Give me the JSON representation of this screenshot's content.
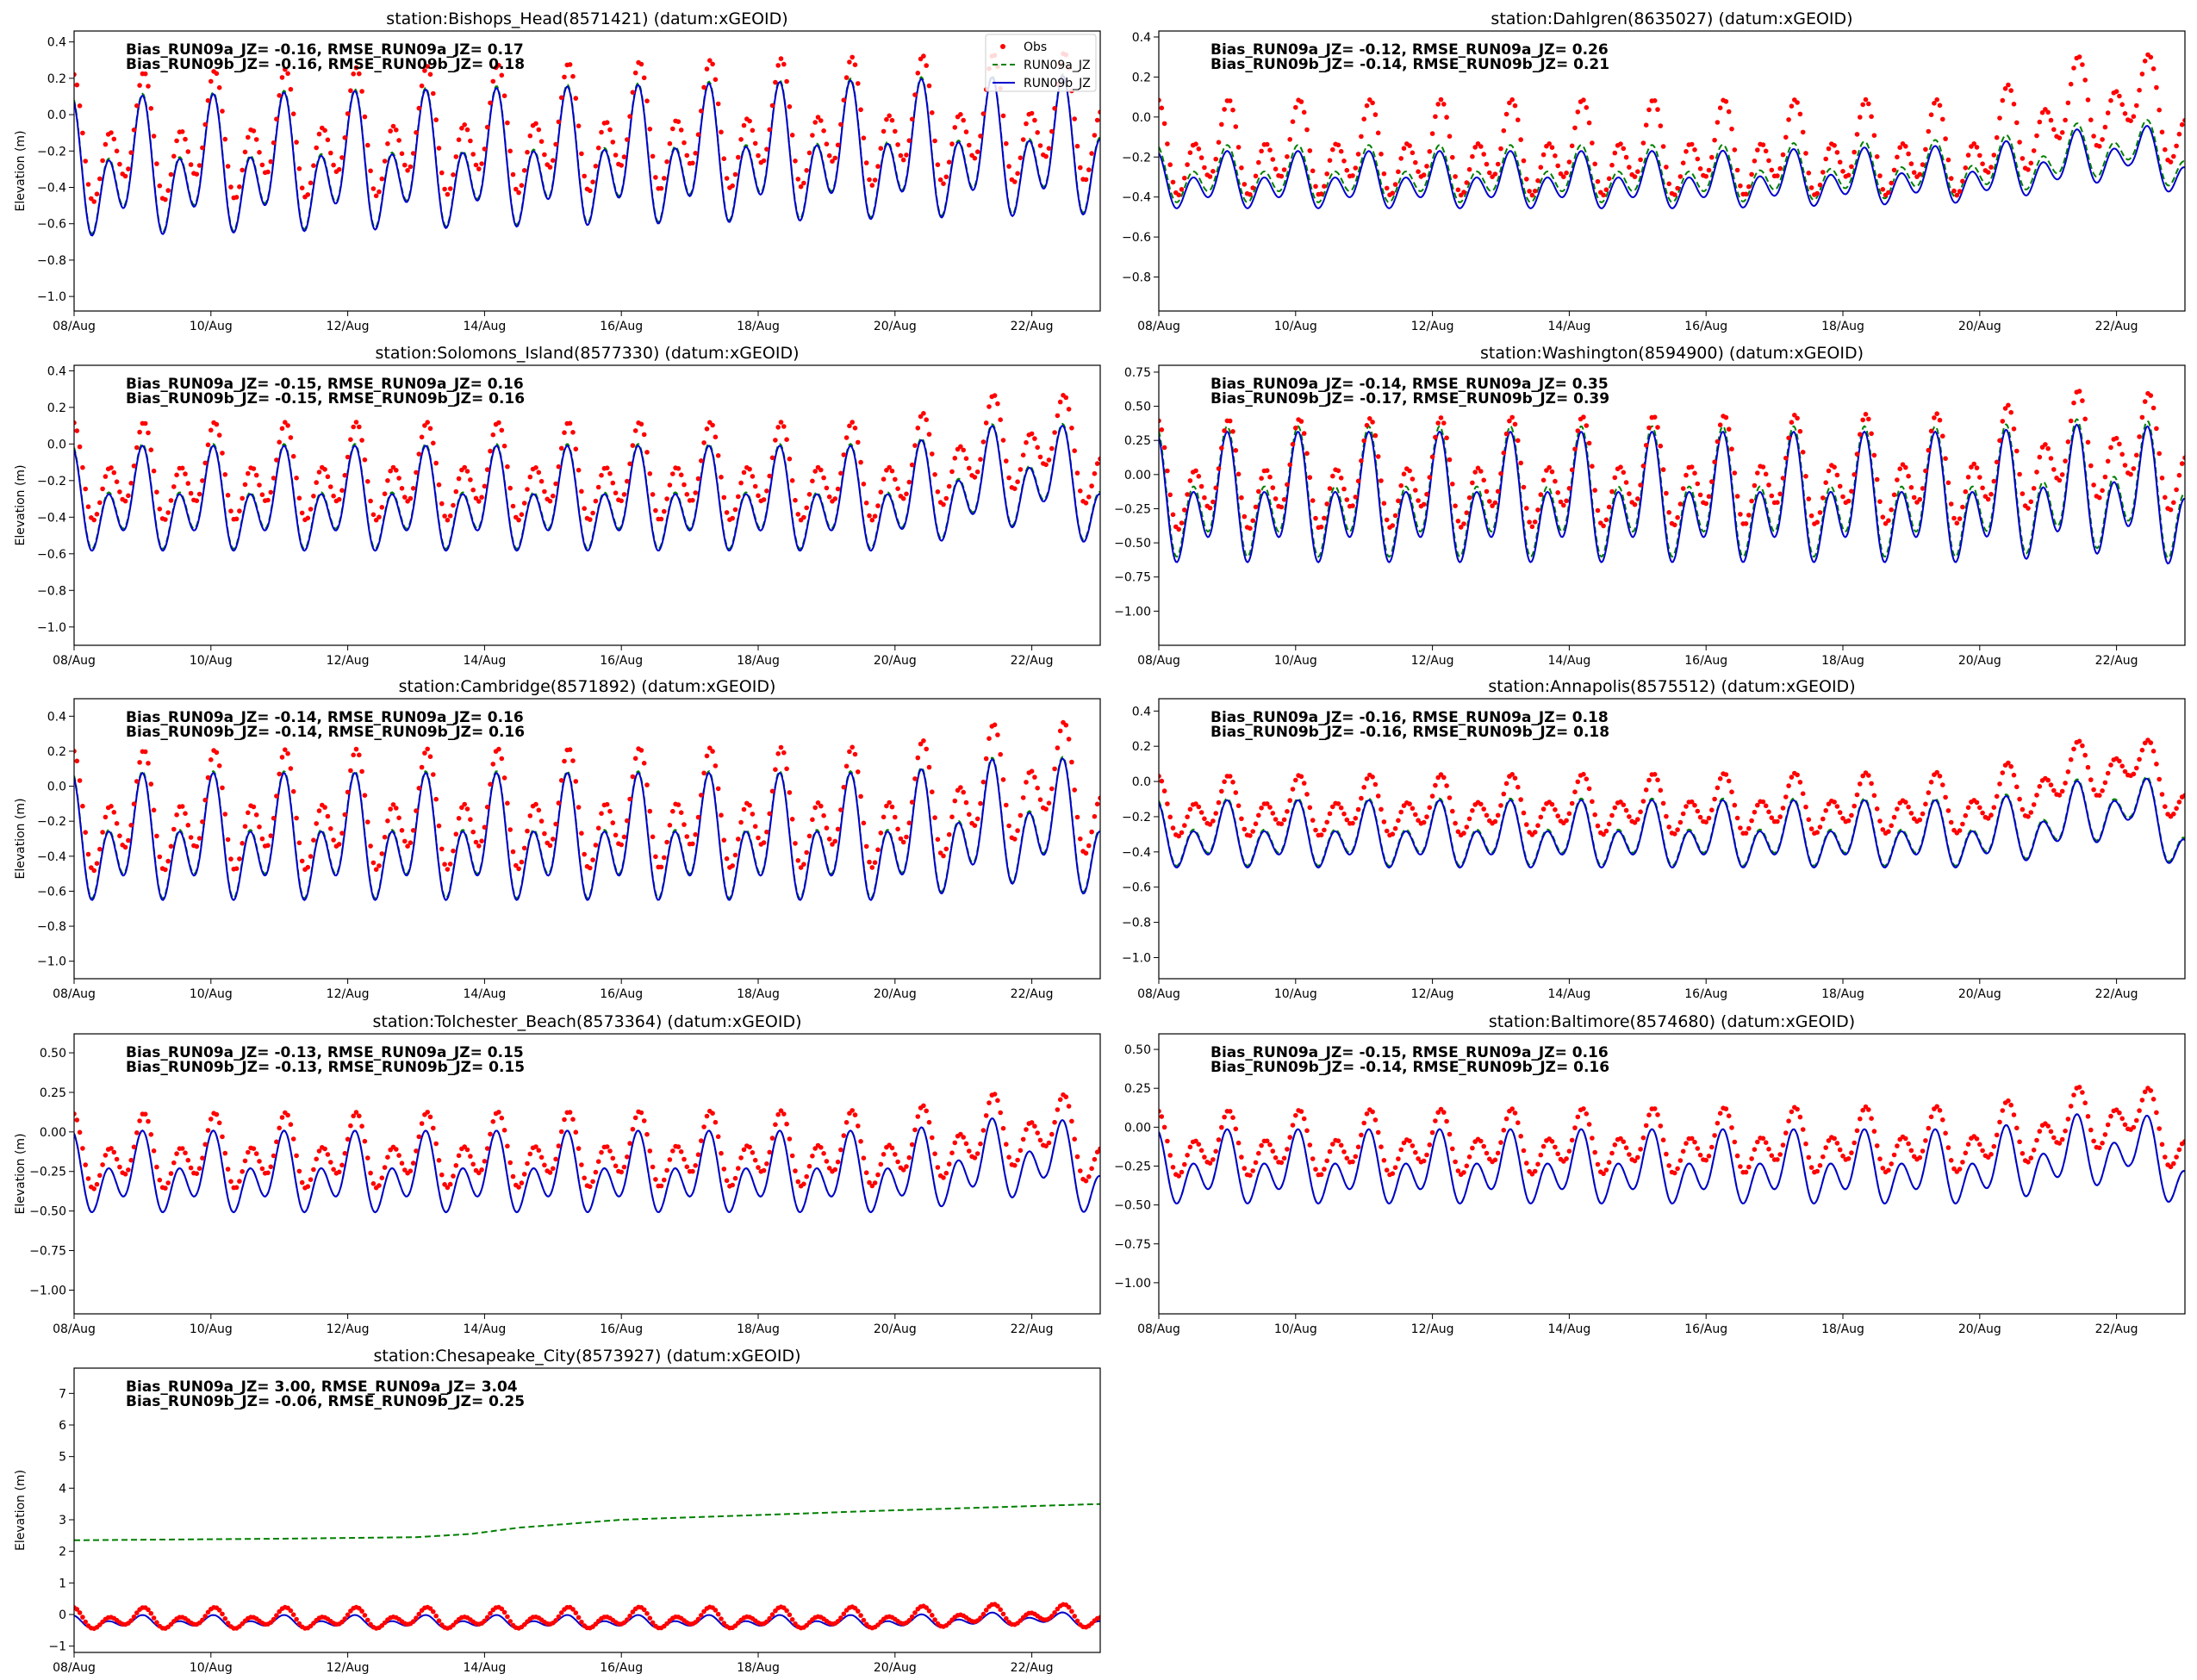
{
  "figure": {
    "series_names": [
      "Obs",
      "RUN09a_JZ",
      "RUN09b_JZ"
    ],
    "colors": {
      "obs": "#ff0000",
      "run09a": "#008000",
      "run09b": "#0000cd"
    },
    "legend_location": "top-right of first panel"
  },
  "chart_data": [
    {
      "type": "line",
      "title": "station:Bishops_Head(8571421) (datum:xGEOID)",
      "ylabel": "Elevation (m)",
      "xlim": [
        0,
        15
      ],
      "ylim": [
        -1.08,
        0.46
      ],
      "yticks": [
        0.4,
        0.2,
        0.0,
        -0.2,
        -0.4,
        -0.6,
        -0.8,
        -1.0
      ],
      "ytick_labels": [
        "0.4",
        "0.2",
        "0.0",
        "−0.2",
        "−0.4",
        "−0.6",
        "−0.8",
        "−1.0"
      ],
      "xtick_labels": [
        "08/Aug",
        "10/Aug",
        "12/Aug",
        "14/Aug",
        "16/Aug",
        "18/Aug",
        "20/Aug",
        "22/Aug"
      ],
      "stats": [
        "Bias_RUN09a_JZ= -0.16, RMSE_RUN09a_JZ=  0.17",
        "Bias_RUN09b_JZ= -0.16, RMSE_RUN09b_JZ=  0.18"
      ],
      "model_params": {
        "mean": -0.33,
        "amp": 0.4,
        "trend": [
          [
            0,
            0
          ],
          [
            15,
            0.12
          ]
        ]
      },
      "obs_params": {
        "mean": -0.17,
        "amp": 0.37,
        "trend": [
          [
            0,
            0
          ],
          [
            15,
            0.12
          ]
        ]
      },
      "run09a_params": {
        "offset": 0.01
      }
    },
    {
      "type": "line",
      "title": "station:Dahlgren(8635027) (datum:xGEOID)",
      "ylabel": "",
      "xlim": [
        0,
        15
      ],
      "ylim": [
        -0.97,
        0.43
      ],
      "yticks": [
        0.4,
        0.2,
        0.0,
        -0.2,
        -0.4,
        -0.6,
        -0.8
      ],
      "ytick_labels": [
        "0.4",
        "0.2",
        "0.0",
        "−0.2",
        "−0.4",
        "−0.6",
        "−0.8"
      ],
      "xtick_labels": [
        "08/Aug",
        "10/Aug",
        "12/Aug",
        "14/Aug",
        "16/Aug",
        "18/Aug",
        "20/Aug",
        "22/Aug"
      ],
      "stats": [
        "Bias_RUN09a_JZ= -0.12, RMSE_RUN09a_JZ=  0.26",
        "Bias_RUN09b_JZ= -0.14, RMSE_RUN09b_JZ=  0.21"
      ],
      "model_params": {
        "mean": -0.33,
        "amp": 0.15,
        "trend": [
          [
            0,
            0
          ],
          [
            8,
            0.0
          ],
          [
            12,
            0.03
          ],
          [
            13,
            0.08
          ],
          [
            14.2,
            0.16
          ],
          [
            15,
            0.05
          ]
        ]
      },
      "obs_params": {
        "mean": -0.18,
        "amp": 0.25,
        "trend": [
          [
            0,
            0
          ],
          [
            12,
            0.0
          ],
          [
            13,
            0.18
          ],
          [
            14.2,
            0.28
          ],
          [
            15,
            0.12
          ]
        ]
      },
      "run09a_params": {
        "offset": 0.03
      }
    },
    {
      "type": "line",
      "title": "station:Solomons_Island(8577330) (datum:xGEOID)",
      "ylabel": "Elevation (m)",
      "xlim": [
        0,
        15
      ],
      "ylim": [
        -1.1,
        0.43
      ],
      "yticks": [
        0.4,
        0.2,
        0.0,
        -0.2,
        -0.4,
        -0.6,
        -0.8,
        -1.0
      ],
      "ytick_labels": [
        "0.4",
        "0.2",
        "0.0",
        "−0.2",
        "−0.4",
        "−0.6",
        "−0.8",
        "−1.0"
      ],
      "xtick_labels": [
        "08/Aug",
        "10/Aug",
        "12/Aug",
        "14/Aug",
        "16/Aug",
        "18/Aug",
        "20/Aug",
        "22/Aug"
      ],
      "stats": [
        "Bias_RUN09a_JZ= -0.15, RMSE_RUN09a_JZ=  0.16",
        "Bias_RUN09b_JZ= -0.15, RMSE_RUN09b_JZ=  0.16"
      ],
      "model_params": {
        "mean": -0.33,
        "amp": 0.3,
        "trend": [
          [
            0,
            0
          ],
          [
            12,
            0.0
          ],
          [
            13,
            0.08
          ],
          [
            14.2,
            0.16
          ],
          [
            15,
            0.0
          ]
        ]
      },
      "obs_params": {
        "mean": -0.18,
        "amp": 0.28,
        "trend": [
          [
            0,
            0
          ],
          [
            12,
            0.0
          ],
          [
            13,
            0.12
          ],
          [
            14.2,
            0.2
          ],
          [
            15,
            0.05
          ]
        ]
      },
      "run09a_params": {
        "offset": 0.01
      }
    },
    {
      "type": "line",
      "title": "station:Washington(8594900) (datum:xGEOID)",
      "ylabel": "",
      "xlim": [
        0,
        15
      ],
      "ylim": [
        -1.25,
        0.8
      ],
      "yticks": [
        0.75,
        0.5,
        0.25,
        0.0,
        -0.25,
        -0.5,
        -0.75,
        -1.0
      ],
      "ytick_labels": [
        "0.75",
        "0.50",
        "0.25",
        "0.00",
        "−0.25",
        "−0.50",
        "−0.75",
        "−1.00"
      ],
      "xtick_labels": [
        "08/Aug",
        "10/Aug",
        "12/Aug",
        "14/Aug",
        "16/Aug",
        "18/Aug",
        "20/Aug",
        "22/Aug"
      ],
      "stats": [
        "Bias_RUN09a_JZ= -0.14, RMSE_RUN09a_JZ=  0.35",
        "Bias_RUN09b_JZ= -0.17, RMSE_RUN09b_JZ=  0.39"
      ],
      "model_params": {
        "mean": -0.22,
        "amp": 0.5,
        "trend": [
          [
            0,
            0
          ],
          [
            12,
            0.0
          ],
          [
            14.2,
            0.08
          ],
          [
            15,
            -0.05
          ]
        ]
      },
      "obs_params": {
        "mean": -0.05,
        "amp": 0.42,
        "trend": [
          [
            0,
            0
          ],
          [
            12,
            0.05
          ],
          [
            13,
            0.2
          ],
          [
            14.2,
            0.25
          ],
          [
            15,
            0.1
          ]
        ]
      },
      "run09a_params": {
        "offset": 0.04
      }
    },
    {
      "type": "line",
      "title": "station:Cambridge(8571892) (datum:xGEOID)",
      "ylabel": "Elevation (m)",
      "xlim": [
        0,
        15
      ],
      "ylim": [
        -1.1,
        0.5
      ],
      "yticks": [
        0.4,
        0.2,
        0.0,
        -0.2,
        -0.4,
        -0.6,
        -0.8,
        -1.0
      ],
      "ytick_labels": [
        "0.4",
        "0.2",
        "0.0",
        "−0.2",
        "−0.4",
        "−0.6",
        "−0.8",
        "−1.0"
      ],
      "xtick_labels": [
        "08/Aug",
        "10/Aug",
        "12/Aug",
        "14/Aug",
        "16/Aug",
        "18/Aug",
        "20/Aug",
        "22/Aug"
      ],
      "stats": [
        "Bias_RUN09a_JZ= -0.14, RMSE_RUN09a_JZ=  0.16",
        "Bias_RUN09b_JZ= -0.14, RMSE_RUN09b_JZ=  0.16"
      ],
      "model_params": {
        "mean": -0.33,
        "amp": 0.38,
        "trend": [
          [
            0,
            0
          ],
          [
            12,
            0.0
          ],
          [
            14.2,
            0.12
          ],
          [
            15,
            0.0
          ]
        ]
      },
      "obs_params": {
        "mean": -0.18,
        "amp": 0.36,
        "trend": [
          [
            0,
            0
          ],
          [
            12,
            0.02
          ],
          [
            14.2,
            0.22
          ],
          [
            15,
            0.05
          ]
        ]
      },
      "run09a_params": {
        "offset": 0.01
      }
    },
    {
      "type": "line",
      "title": "station:Annapolis(8575512) (datum:xGEOID)",
      "ylabel": "",
      "xlim": [
        0,
        15
      ],
      "ylim": [
        -1.12,
        0.47
      ],
      "yticks": [
        0.4,
        0.2,
        0.0,
        -0.2,
        -0.4,
        -0.6,
        -0.8,
        -1.0
      ],
      "ytick_labels": [
        "0.4",
        "0.2",
        "0.0",
        "−0.2",
        "−0.4",
        "−0.6",
        "−0.8",
        "−1.0"
      ],
      "xtick_labels": [
        "08/Aug",
        "10/Aug",
        "12/Aug",
        "14/Aug",
        "16/Aug",
        "18/Aug",
        "20/Aug",
        "22/Aug"
      ],
      "stats": [
        "Bias_RUN09a_JZ= -0.16, RMSE_RUN09a_JZ=  0.18",
        "Bias_RUN09b_JZ= -0.16, RMSE_RUN09b_JZ=  0.18"
      ],
      "model_params": {
        "mean": -0.32,
        "amp": 0.2,
        "trend": [
          [
            0,
            0
          ],
          [
            12,
            0.0
          ],
          [
            13,
            0.06
          ],
          [
            14.2,
            0.2
          ],
          [
            15,
            -0.05
          ]
        ]
      },
      "obs_params": {
        "mean": -0.16,
        "amp": 0.18,
        "trend": [
          [
            0,
            0
          ],
          [
            12,
            0.02
          ],
          [
            13,
            0.15
          ],
          [
            14.2,
            0.28
          ],
          [
            15,
            0.05
          ]
        ]
      },
      "run09a_params": {
        "offset": 0.01
      }
    },
    {
      "type": "line",
      "title": "station:Tolchester_Beach(8573364) (datum:xGEOID)",
      "ylabel": "Elevation (m)",
      "xlim": [
        0,
        15
      ],
      "ylim": [
        -1.15,
        0.62
      ],
      "yticks": [
        0.5,
        0.25,
        0.0,
        -0.25,
        -0.5,
        -0.75,
        -1.0
      ],
      "ytick_labels": [
        "0.50",
        "0.25",
        "0.00",
        "−0.25",
        "−0.50",
        "−0.75",
        "−1.00"
      ],
      "xtick_labels": [
        "08/Aug",
        "10/Aug",
        "12/Aug",
        "14/Aug",
        "16/Aug",
        "18/Aug",
        "20/Aug",
        "22/Aug"
      ],
      "stats": [
        "Bias_RUN09a_JZ= -0.13, RMSE_RUN09a_JZ=  0.15",
        "Bias_RUN09b_JZ= -0.13, RMSE_RUN09b_JZ=  0.15"
      ],
      "model_params": {
        "mean": -0.28,
        "amp": 0.27,
        "trend": [
          [
            0,
            0
          ],
          [
            12,
            0.0
          ],
          [
            14.2,
            0.12
          ],
          [
            15,
            -0.05
          ]
        ]
      },
      "obs_params": {
        "mean": -0.15,
        "amp": 0.25,
        "trend": [
          [
            0,
            0
          ],
          [
            12,
            0.02
          ],
          [
            14.2,
            0.18
          ],
          [
            15,
            0.0
          ]
        ]
      },
      "run09a_params": {
        "offset": 0.0
      }
    },
    {
      "type": "line",
      "title": "station:Baltimore(8574680) (datum:xGEOID)",
      "ylabel": "",
      "xlim": [
        0,
        15
      ],
      "ylim": [
        -1.2,
        0.6
      ],
      "yticks": [
        0.5,
        0.25,
        0.0,
        -0.25,
        -0.5,
        -0.75,
        -1.0
      ],
      "ytick_labels": [
        "0.50",
        "0.25",
        "0.00",
        "−0.25",
        "−0.50",
        "−0.75",
        "−1.00"
      ],
      "xtick_labels": [
        "08/Aug",
        "10/Aug",
        "12/Aug",
        "14/Aug",
        "16/Aug",
        "18/Aug",
        "20/Aug",
        "22/Aug"
      ],
      "stats": [
        "Bias_RUN09a_JZ= -0.15, RMSE_RUN09a_JZ=  0.16",
        "Bias_RUN09b_JZ= -0.14, RMSE_RUN09b_JZ=  0.16"
      ],
      "model_params": {
        "mean": -0.28,
        "amp": 0.25,
        "trend": [
          [
            0,
            0
          ],
          [
            12,
            0.0
          ],
          [
            14.2,
            0.15
          ],
          [
            15,
            -0.05
          ]
        ]
      },
      "obs_params": {
        "mean": -0.13,
        "amp": 0.22,
        "trend": [
          [
            0,
            0
          ],
          [
            12,
            0.03
          ],
          [
            14.2,
            0.22
          ],
          [
            15,
            0.0
          ]
        ]
      },
      "run09a_params": {
        "offset": 0.0
      }
    },
    {
      "type": "line",
      "title": "station:Chesapeake_City(8573927) (datum:xGEOID)",
      "ylabel": "Elevation (m)",
      "xlim": [
        0,
        15
      ],
      "ylim": [
        -1.2,
        7.8
      ],
      "yticks": [
        7,
        6,
        5,
        4,
        3,
        2,
        1,
        0,
        -1
      ],
      "ytick_labels": [
        "7",
        "6",
        "5",
        "4",
        "3",
        "2",
        "1",
        "0",
        "−1"
      ],
      "xtick_labels": [
        "08/Aug",
        "10/Aug",
        "12/Aug",
        "14/Aug",
        "16/Aug",
        "18/Aug",
        "20/Aug",
        "22/Aug"
      ],
      "stats": [
        "Bias_RUN09a_JZ=  3.00, RMSE_RUN09a_JZ=  3.04",
        "Bias_RUN09b_JZ= -0.06, RMSE_RUN09b_JZ=  0.25"
      ],
      "model_params": {
        "mean": -0.25,
        "amp": 0.22,
        "trend": [
          [
            0,
            0
          ],
          [
            12,
            0.0
          ],
          [
            14.2,
            0.12
          ],
          [
            15,
            0.0
          ]
        ]
      },
      "obs_params": {
        "mean": -0.15,
        "amp": 0.35,
        "trend": [
          [
            0,
            0
          ],
          [
            12,
            0.02
          ],
          [
            14.2,
            0.15
          ],
          [
            15,
            0.0
          ]
        ]
      },
      "run09a_params": {
        "independent": true,
        "points": [
          [
            0,
            2.35
          ],
          [
            3,
            2.4
          ],
          [
            5,
            2.45
          ],
          [
            5.8,
            2.55
          ],
          [
            6.5,
            2.75
          ],
          [
            8,
            3.0
          ],
          [
            10,
            3.15
          ],
          [
            12,
            3.3
          ],
          [
            15,
            3.5
          ]
        ]
      }
    }
  ]
}
